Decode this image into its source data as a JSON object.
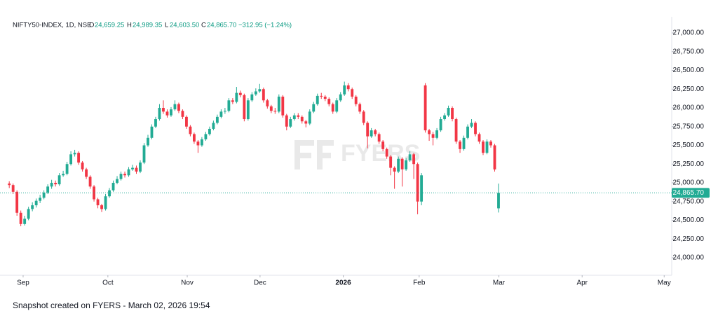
{
  "chart_data": {
    "type": "candlestick",
    "header": {
      "symbol": "NIFTY50-INDEX, 1D, NSE",
      "o_label": "O",
      "o": "24,659.25",
      "h_label": "H",
      "h": "24,989.35",
      "l_label": "L",
      "l": "24,603.50",
      "c_label": "C",
      "c": "24,865.70",
      "change": "−312.95 (−1.24%)"
    },
    "watermark": "FYERS",
    "footer": "Snapshot created on FYERS - March 02, 2026 19:54",
    "up_color": "#22ab94",
    "down_color": "#f23645",
    "open": [
      24990,
      24970,
      24880,
      24600,
      24450,
      24520,
      24650,
      24700,
      24760,
      24800,
      24870,
      24950,
      25000,
      24980,
      25100,
      25120,
      25250,
      25380,
      25400,
      25270,
      25180,
      25080,
      24950,
      24780,
      24700,
      24650,
      24820,
      24900,
      25000,
      25050,
      25120,
      25100,
      25180,
      25200,
      25150,
      25270,
      25500,
      25600,
      25750,
      25850,
      26000,
      25950,
      25900,
      25980,
      26050,
      25960,
      25880,
      25750,
      25650,
      25550,
      25500,
      25580,
      25650,
      25720,
      25800,
      25880,
      25950,
      25960,
      26100,
      26080,
      26200,
      26170,
      25850,
      26100,
      26180,
      26220,
      26250,
      26100,
      26020,
      25960,
      25950,
      26150,
      25900,
      25750,
      25850,
      25900,
      25880,
      25820,
      25790,
      25950,
      26050,
      26160,
      26150,
      26120,
      26050,
      25950,
      26100,
      26180,
      26300,
      26250,
      26150,
      26050,
      25950,
      25800,
      25620,
      25700,
      25650,
      25550,
      25450,
      25350,
      25200,
      25150,
      25320,
      25180,
      25300,
      25380,
      25250,
      24750,
      26300,
      25700,
      25650,
      25600,
      25700,
      25850,
      25900,
      26000,
      25850,
      25550,
      25450,
      25600,
      25750,
      25800,
      25650,
      25550,
      25400,
      25550,
      25500,
      24659.25
    ],
    "high": [
      25020,
      24990,
      24900,
      24630,
      24560,
      24680,
      24740,
      24790,
      24840,
      24900,
      24980,
      25040,
      25030,
      25130,
      25160,
      25280,
      25420,
      25440,
      25420,
      25290,
      25200,
      25100,
      24970,
      24800,
      24720,
      24850,
      24930,
      25030,
      25090,
      25150,
      25150,
      25210,
      25240,
      25230,
      25300,
      25530,
      25640,
      25780,
      25880,
      26050,
      26100,
      25980,
      26010,
      26100,
      26070,
      25980,
      25900,
      25770,
      25670,
      25570,
      25610,
      25680,
      25750,
      25830,
      25910,
      25980,
      26000,
      26130,
      26130,
      26280,
      26230,
      26190,
      26130,
      26210,
      26260,
      26320,
      26270,
      26120,
      26040,
      26000,
      26180,
      26170,
      25920,
      25880,
      25930,
      25930,
      25900,
      25840,
      25980,
      26080,
      26190,
      26200,
      26170,
      26140,
      26070,
      26130,
      26210,
      26350,
      26330,
      26270,
      26170,
      26070,
      25970,
      25820,
      25730,
      25720,
      25670,
      25570,
      25470,
      25370,
      25220,
      25350,
      25340,
      25330,
      25420,
      25400,
      25270,
      25130,
      26330,
      25720,
      25680,
      25730,
      25880,
      25930,
      26030,
      26020,
      25870,
      25570,
      25630,
      25780,
      25850,
      25820,
      25670,
      25570,
      25580,
      25570,
      25520,
      24989.35
    ],
    "low": [
      24930,
      24850,
      24560,
      24420,
      24430,
      24500,
      24620,
      24670,
      24730,
      24780,
      24850,
      24920,
      24950,
      24960,
      25080,
      25100,
      25230,
      25350,
      25240,
      25150,
      25050,
      24920,
      24750,
      24660,
      24610,
      24630,
      24800,
      24880,
      24980,
      25030,
      25070,
      25080,
      25160,
      25120,
      25130,
      25250,
      25480,
      25580,
      25730,
      25830,
      25920,
      25870,
      25880,
      25960,
      25930,
      25850,
      25720,
      25620,
      25520,
      25400,
      25480,
      25560,
      25630,
      25700,
      25780,
      25860,
      25920,
      25940,
      26050,
      26060,
      26140,
      25820,
      25830,
      26080,
      26160,
      26200,
      26070,
      25990,
      25930,
      25920,
      25930,
      25870,
      25700,
      25730,
      25830,
      25850,
      25790,
      25740,
      25770,
      25930,
      26030,
      26120,
      26090,
      26020,
      25920,
      25930,
      26080,
      26160,
      26220,
      26120,
      26020,
      25920,
      25770,
      25460,
      25600,
      25620,
      25520,
      25420,
      25320,
      25100,
      24920,
      25130,
      24950,
      25160,
      25280,
      25050,
      24580,
      24700,
      25670,
      25560,
      25500,
      25580,
      25680,
      25830,
      25880,
      25820,
      25520,
      25400,
      25430,
      25580,
      25730,
      25620,
      25520,
      25370,
      25380,
      25470,
      25150,
      24603.5
    ],
    "close": [
      24970,
      24880,
      24600,
      24450,
      24520,
      24650,
      24700,
      24760,
      24800,
      24870,
      24950,
      25000,
      24980,
      25100,
      25120,
      25250,
      25380,
      25400,
      25270,
      25180,
      25080,
      24950,
      24780,
      24700,
      24650,
      24820,
      24900,
      25000,
      25050,
      25120,
      25100,
      25180,
      25200,
      25150,
      25270,
      25500,
      25600,
      25750,
      25850,
      26000,
      25950,
      25900,
      25980,
      26050,
      25960,
      25880,
      25750,
      25650,
      25550,
      25500,
      25580,
      25650,
      25720,
      25800,
      25880,
      25950,
      25960,
      26100,
      26080,
      26200,
      26170,
      25850,
      26100,
      26180,
      26220,
      26250,
      26100,
      26020,
      25960,
      25950,
      26150,
      25900,
      25750,
      25850,
      25900,
      25880,
      25820,
      25790,
      25950,
      26050,
      26160,
      26150,
      26120,
      26050,
      25950,
      26100,
      26180,
      26300,
      26250,
      26150,
      26050,
      25950,
      25800,
      25620,
      25700,
      25650,
      25550,
      25450,
      25350,
      25200,
      25150,
      25320,
      25180,
      25300,
      25380,
      25250,
      24750,
      25100,
      25700,
      25650,
      25600,
      25700,
      25850,
      25900,
      26000,
      25850,
      25550,
      25450,
      25600,
      25750,
      25800,
      25650,
      25550,
      25400,
      25550,
      25500,
      25178.65,
      24865.7
    ],
    "last_price": {
      "value": 24865.7,
      "label": "24,865.70"
    },
    "xlim": [
      -2.4,
      170.5
    ],
    "xticks": [
      {
        "value": 3.6,
        "label": "Sep"
      },
      {
        "value": 25.6,
        "label": "Oct"
      },
      {
        "value": 46.2,
        "label": "Nov"
      },
      {
        "value": 65.1,
        "label": "Dec"
      },
      {
        "value": 86.7,
        "label": "2026"
      },
      {
        "value": 106.4,
        "label": "Feb"
      },
      {
        "value": 127.1,
        "label": "Mar"
      },
      {
        "value": 148.7,
        "label": "Apr"
      },
      {
        "value": 170,
        "label": "May"
      }
    ],
    "ylim": [
      23794,
      27159
    ],
    "yticks": [
      {
        "value": 24000,
        "label": "24,000.00"
      },
      {
        "value": 24250,
        "label": "24,250.00"
      },
      {
        "value": 24500,
        "label": "24,500.00"
      },
      {
        "value": 24750,
        "label": "24,750.00"
      },
      {
        "value": 25000,
        "label": "25,000.00"
      },
      {
        "value": 25250,
        "label": "25,250.00"
      },
      {
        "value": 25500,
        "label": "25,500.00"
      },
      {
        "value": 25750,
        "label": "25,750.00"
      },
      {
        "value": 26000,
        "label": "26,000.00"
      },
      {
        "value": 26250,
        "label": "26,250.00"
      },
      {
        "value": 26500,
        "label": "26,500.00"
      },
      {
        "value": 26750,
        "label": "26,750.00"
      },
      {
        "value": 27000,
        "label": "27,000.00"
      }
    ]
  }
}
